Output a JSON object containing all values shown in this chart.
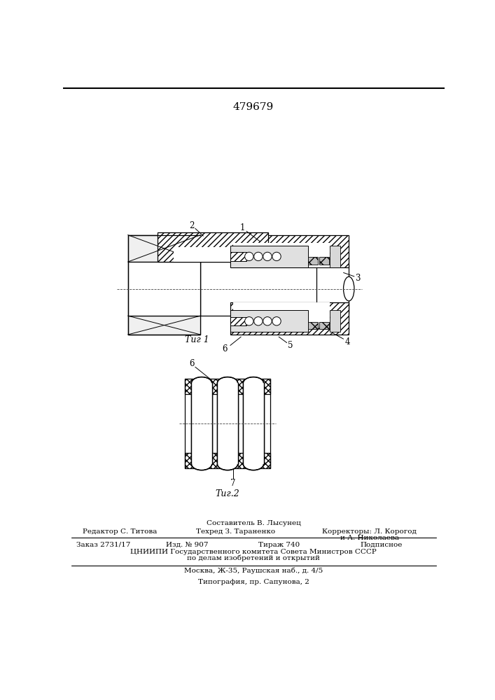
{
  "patent_number": "479679",
  "fig1_caption": "Τиг 1",
  "fig2_caption": "Τиг.2",
  "label_1": "1",
  "label_2": "2",
  "label_3": "3",
  "label_4": "4",
  "label_5": "5",
  "label_6": "6",
  "label_7": "7",
  "footer_composer_label": "Составитель В. Лысунец",
  "footer_editor": "Редактор С. Титова",
  "footer_techr": "Техред З. Тараненко",
  "footer_corr1": "Корректоры: Л. Корогод",
  "footer_corr2": "и А. Николаева",
  "footer_order": "Заказ 2731/17",
  "footer_izd": "Изд. № 907",
  "footer_tirazh": "Тираж 740",
  "footer_podp": "Подписное",
  "footer_cniip1": "ЦНИИПИ Государственного комитета Совета Министров СССР",
  "footer_cniip2": "по делам изобретений и открытий",
  "footer_moscow": "Москва, Ж-35, Раушская наб., д. 4/5",
  "footer_tipo": "Типография, пр. Сапунова, 2",
  "bg_color": "#ffffff"
}
